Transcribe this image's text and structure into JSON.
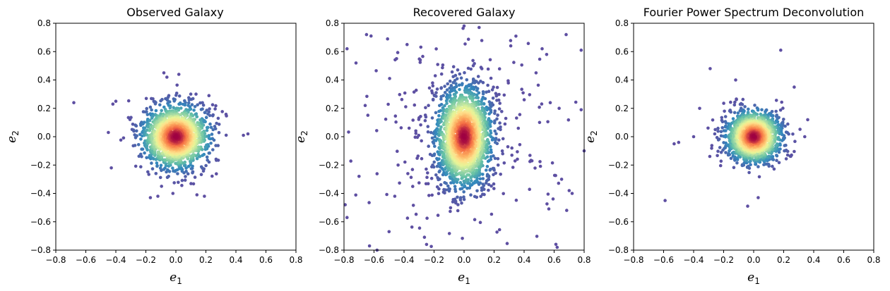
{
  "chart_data": [
    {
      "type": "scatter",
      "title": "Observed Galaxy",
      "xlabel": "e",
      "xlabel_sub": "1",
      "ylabel": "e",
      "ylabel_sub": "2",
      "xlim": [
        -0.8,
        0.8
      ],
      "ylim": [
        -0.8,
        0.8
      ],
      "xticks": [
        "−0.8",
        "−0.6",
        "−0.4",
        "−0.2",
        "0.0",
        "0.2",
        "0.4",
        "0.6",
        "0.8"
      ],
      "yticks": [
        "−0.8",
        "−0.6",
        "−0.4",
        "−0.2",
        "0.0",
        "0.2",
        "0.4",
        "0.6",
        "0.8"
      ],
      "colormap": "Spectral_r (density)",
      "grid": false,
      "center": [
        0.0,
        0.0
      ],
      "spread_sigma": [
        0.11,
        0.11
      ],
      "n_points": 1700,
      "sample_points": [
        [
          -0.68,
          0.24
        ],
        [
          -0.45,
          0.03
        ],
        [
          -0.42,
          0.23
        ],
        [
          -0.4,
          0.25
        ],
        [
          -0.43,
          -0.22
        ],
        [
          0.45,
          0.01
        ],
        [
          0.48,
          0.02
        ],
        [
          -0.08,
          0.45
        ],
        [
          0.02,
          0.44
        ],
        [
          -0.06,
          0.42
        ],
        [
          -0.17,
          -0.43
        ],
        [
          -0.12,
          -0.42
        ],
        [
          0.14,
          -0.41
        ],
        [
          0.19,
          -0.42
        ],
        [
          -0.02,
          -0.4
        ]
      ]
    },
    {
      "type": "scatter",
      "title": "Recovered Galaxy",
      "xlabel": "e",
      "xlabel_sub": "1",
      "ylabel": "e",
      "ylabel_sub": "2",
      "xlim": [
        -0.8,
        0.8
      ],
      "ylim": [
        -0.8,
        0.8
      ],
      "xticks": [
        "−0.8",
        "−0.6",
        "−0.4",
        "−0.2",
        "0.0",
        "0.2",
        "0.4",
        "0.6",
        "0.8"
      ],
      "yticks": [
        "−0.8",
        "−0.6",
        "−0.4",
        "−0.2",
        "0.0",
        "0.2",
        "0.4",
        "0.6",
        "0.8"
      ],
      "colormap": "Spectral_r (density)",
      "grid": false,
      "center": [
        0.0,
        0.0
      ],
      "spread_sigma": [
        0.09,
        0.17
      ],
      "n_points": 2200,
      "sample_points": [
        [
          -0.78,
          0.62
        ],
        [
          -0.65,
          0.72
        ],
        [
          -0.62,
          0.71
        ],
        [
          0.1,
          0.77
        ],
        [
          0.68,
          0.72
        ],
        [
          0.78,
          0.61
        ],
        [
          -0.78,
          -0.57
        ],
        [
          -0.63,
          -0.77
        ],
        [
          -0.58,
          -0.8
        ],
        [
          -0.5,
          -0.67
        ],
        [
          -0.25,
          -0.76
        ],
        [
          0.62,
          -0.78
        ],
        [
          0.7,
          -0.38
        ],
        [
          0.72,
          -0.4
        ],
        [
          0.8,
          -0.1
        ],
        [
          -0.72,
          0.52
        ],
        [
          0.52,
          0.62
        ],
        [
          0.55,
          0.58
        ],
        [
          -0.7,
          -0.28
        ],
        [
          0.78,
          0.19
        ],
        [
          0.65,
          -0.3
        ],
        [
          -0.38,
          0.65
        ],
        [
          -0.45,
          0.55
        ]
      ]
    },
    {
      "type": "scatter",
      "title": "Fourier Power Spectrum Deconvolution",
      "xlabel": "e",
      "xlabel_sub": "1",
      "ylabel": "e",
      "ylabel_sub": "2",
      "xlim": [
        -0.8,
        0.8
      ],
      "ylim": [
        -0.8,
        0.8
      ],
      "xticks": [
        "−0.8",
        "−0.6",
        "−0.4",
        "−0.2",
        "0.0",
        "0.2",
        "0.4",
        "0.6",
        "0.8"
      ],
      "yticks": [
        "−0.8",
        "−0.6",
        "−0.4",
        "−0.2",
        "0.0",
        "0.2",
        "0.4",
        "0.6",
        "0.8"
      ],
      "colormap": "Spectral_r (density)",
      "grid": false,
      "center": [
        0.0,
        0.0
      ],
      "spread_sigma": [
        0.09,
        0.09
      ],
      "n_points": 1500,
      "sample_points": [
        [
          -0.59,
          -0.45
        ],
        [
          -0.53,
          -0.05
        ],
        [
          -0.5,
          -0.04
        ],
        [
          -0.29,
          0.48
        ],
        [
          -0.12,
          0.4
        ],
        [
          0.18,
          0.61
        ],
        [
          0.27,
          0.35
        ],
        [
          -0.04,
          -0.49
        ],
        [
          0.03,
          -0.43
        ],
        [
          0.36,
          0.12
        ],
        [
          0.34,
          0.0
        ],
        [
          -0.4,
          0.0
        ],
        [
          -0.36,
          0.2
        ]
      ]
    }
  ]
}
